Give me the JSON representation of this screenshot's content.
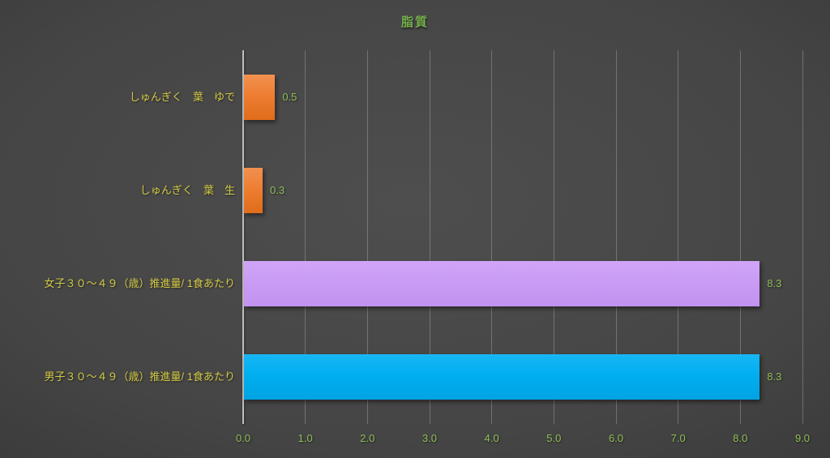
{
  "chart_data": {
    "type": "bar",
    "orientation": "horizontal",
    "title": "脂質",
    "categories": [
      "しゅんぎく　葉　ゆで",
      "しゅんぎく　葉　生",
      "女子３０～４９（歳）推進量/ 1食あたり",
      "男子３０～４９（歳）推進量/ 1食あたり"
    ],
    "values": [
      0.5,
      0.3,
      8.3,
      8.3
    ],
    "value_labels": [
      "0.5",
      "0.3",
      "8.3",
      "8.3"
    ],
    "bars": [
      {
        "color": "#ED7D31",
        "color_light": "#F29150",
        "color_dark": "#E06C1B"
      },
      {
        "color": "#ED7D31",
        "color_light": "#F29150",
        "color_dark": "#E06C1B"
      },
      {
        "color": "#C99BF4",
        "color_light": "#D0A5F8",
        "color_dark": "#C292F0"
      },
      {
        "color": "#00AEEF",
        "color_light": "#18B6F4",
        "color_dark": "#00A3E2"
      }
    ],
    "xlim": [
      0,
      9
    ],
    "x_ticks": [
      0,
      1,
      2,
      3,
      4,
      5,
      6,
      7,
      8,
      9
    ],
    "x_tick_labels": [
      "0.0",
      "1.0",
      "2.0",
      "3.0",
      "4.0",
      "5.0",
      "6.0",
      "7.0",
      "8.0",
      "9.0"
    ],
    "grid": true,
    "legend": "none"
  },
  "colors": {
    "background_center": "#4e4e4e",
    "background_edge": "#2c2c2c",
    "title_text": "#74B04A",
    "tick_text": "#8FBE55",
    "value_text": "#8FBE55",
    "category_text": "#D3CA45",
    "axis_line": "#BFBFBF",
    "gridline": "rgba(255,255,255,0.24)"
  }
}
